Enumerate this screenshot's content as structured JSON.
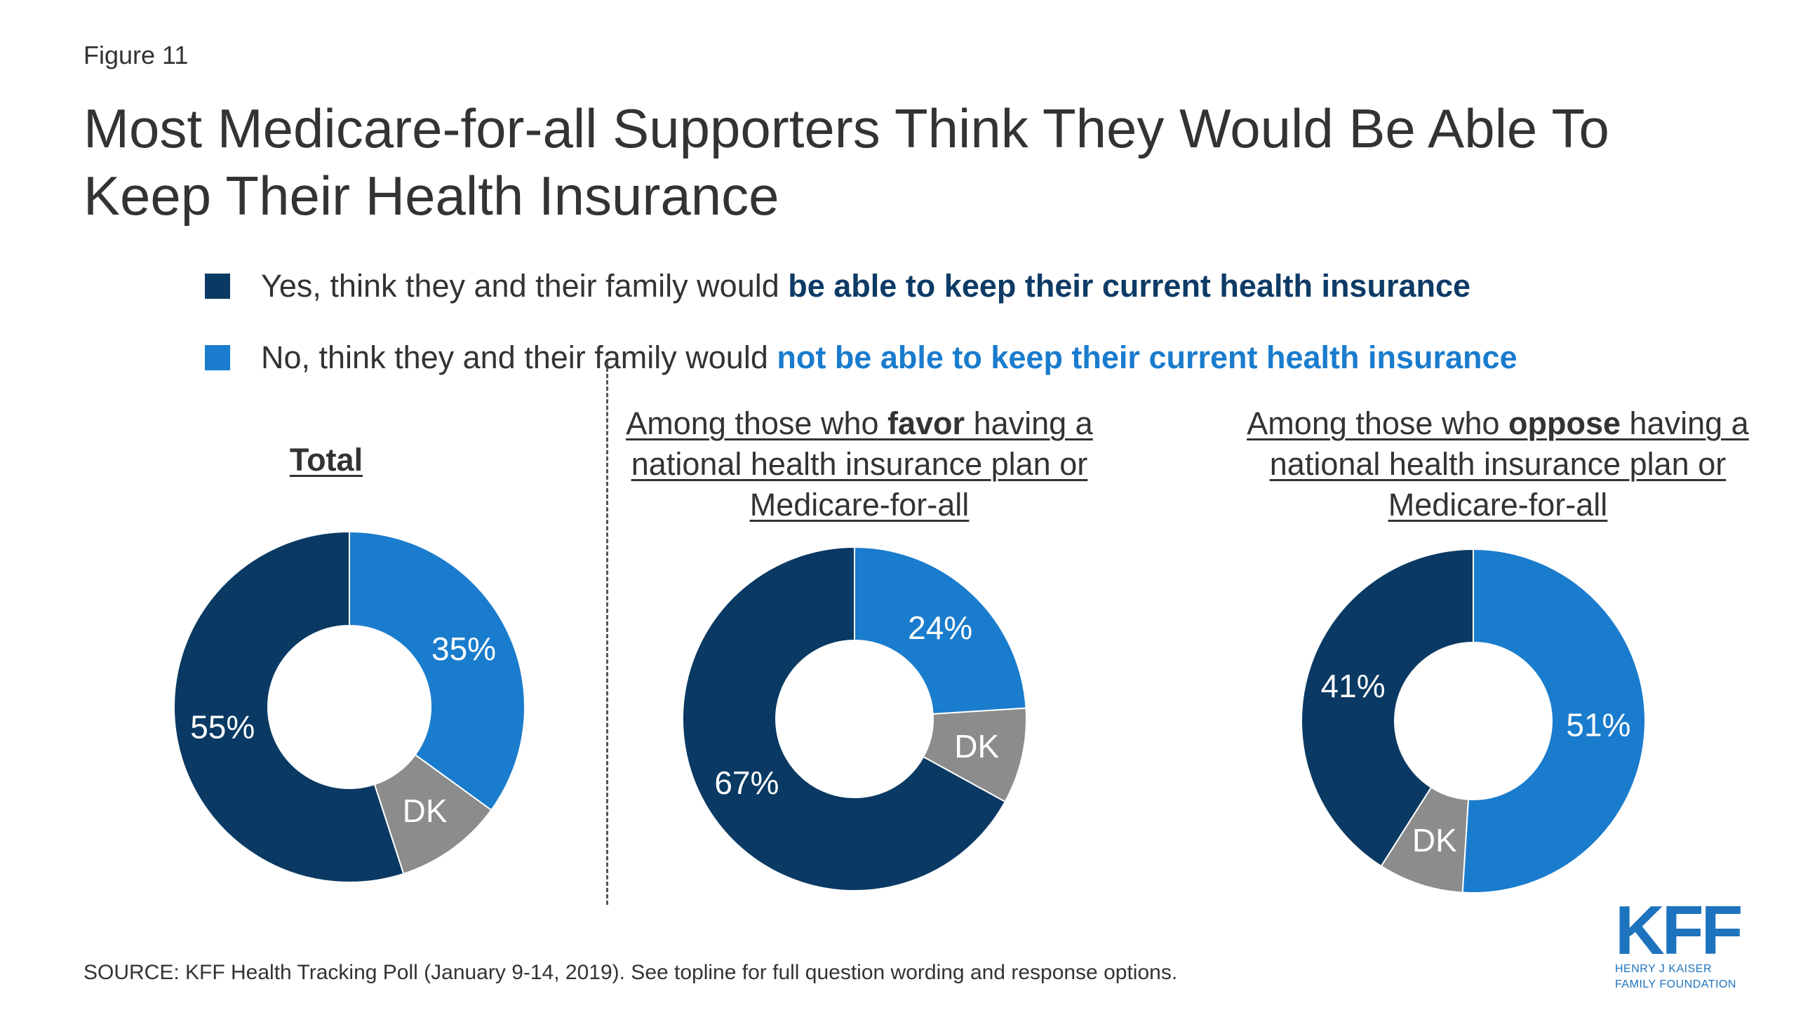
{
  "figure_label": "Figure 11",
  "title": "Most Medicare-for-all Supporters Think They Would Be Able To Keep Their Health Insurance",
  "colors": {
    "yes": "#0a3a63",
    "no": "#1a7ccd",
    "dk": "#8c8c8c",
    "yes_text": "#0d3b66",
    "no_text": "#1a7ccd"
  },
  "legend": [
    {
      "prefix": "Yes, think they and their family would ",
      "emphasis": "be able to keep their current health insurance"
    },
    {
      "prefix": "No, think they and their family would ",
      "emphasis": "not be able to keep their current health insurance"
    }
  ],
  "panels": {
    "total": {
      "title": "Total"
    },
    "favor": {
      "pre": "Among those who ",
      "bold": "favor",
      "post": " having a national health insurance plan or Medicare-for-all"
    },
    "oppose": {
      "pre": "Among those who ",
      "bold": "oppose",
      "post": " having a national health insurance plan or Medicare-for-all"
    }
  },
  "chart_data": [
    {
      "type": "pie",
      "title": "Total",
      "slices": [
        {
          "name": "No",
          "value": 35,
          "label": "35%"
        },
        {
          "name": "DK",
          "value": 10,
          "label": "DK"
        },
        {
          "name": "Yes",
          "value": 55,
          "label": "55%"
        }
      ]
    },
    {
      "type": "pie",
      "title": "Among those who favor having a national health insurance plan or Medicare-for-all",
      "slices": [
        {
          "name": "No",
          "value": 24,
          "label": "24%"
        },
        {
          "name": "DK",
          "value": 9,
          "label": "DK"
        },
        {
          "name": "Yes",
          "value": 67,
          "label": "67%"
        }
      ]
    },
    {
      "type": "pie",
      "title": "Among those who oppose having a national health insurance plan or Medicare-for-all",
      "slices": [
        {
          "name": "No",
          "value": 51,
          "label": "51%"
        },
        {
          "name": "DK",
          "value": 8,
          "label": "DK"
        },
        {
          "name": "Yes",
          "value": 41,
          "label": "41%"
        }
      ]
    }
  ],
  "source": "SOURCE: KFF Health Tracking Poll (January 9-14, 2019). See topline for full question wording and response options.",
  "logo": {
    "mark": "KFF",
    "line1": "HENRY J KAISER",
    "line2": "FAMILY FOUNDATION"
  }
}
